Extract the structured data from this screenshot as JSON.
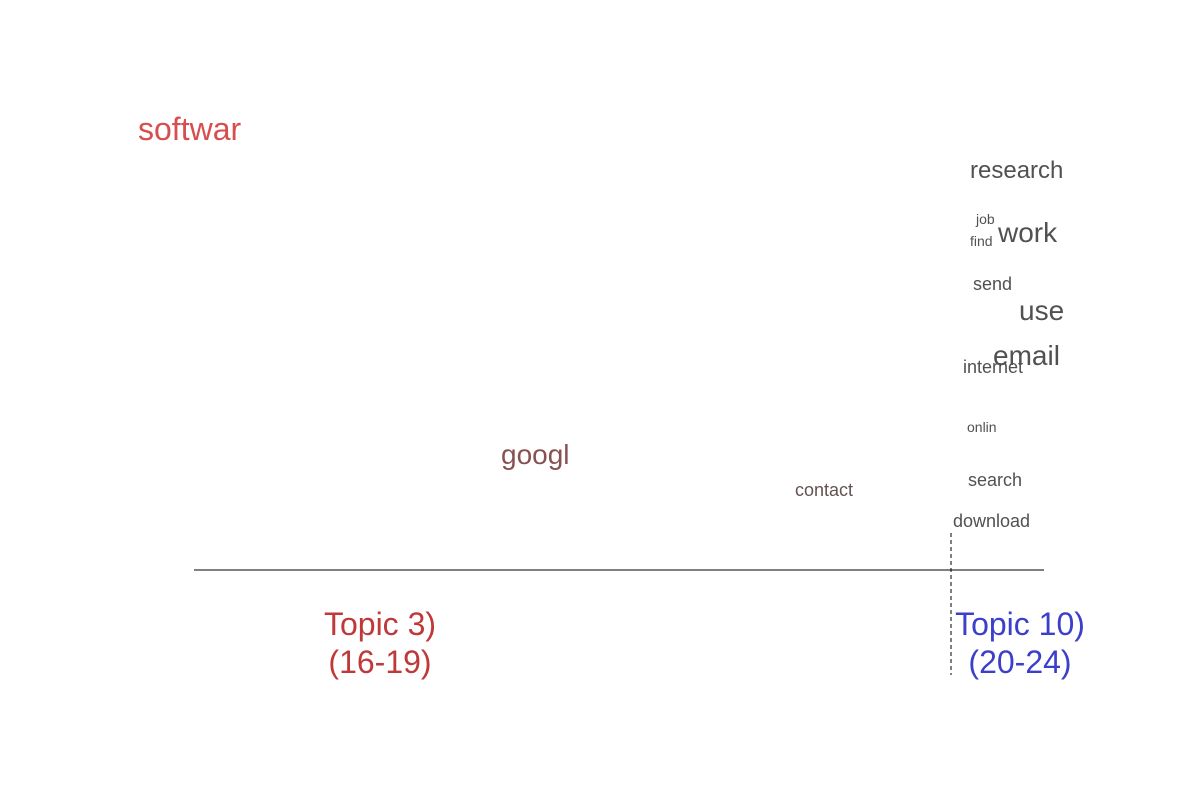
{
  "chart_data": {
    "type": "scatter",
    "grid": false,
    "axis": {
      "line_color": "#000000",
      "marker_style": "dashed"
    },
    "topics": [
      {
        "name": "Topic 3)",
        "range": "(16-19)",
        "color": "#c0393a"
      },
      {
        "name": "Topic 10)",
        "range": "(20-24)",
        "color": "#3b3fc9"
      }
    ],
    "words": [
      {
        "text": "softwar",
        "topic_mix": 0.0,
        "size": 5
      },
      {
        "text": "googl",
        "topic_mix": 0.45,
        "size": 4
      },
      {
        "text": "contact",
        "topic_mix": 0.79,
        "size": 2
      },
      {
        "text": "research",
        "topic_mix": 1.0,
        "size": 3
      },
      {
        "text": "job",
        "topic_mix": 1.0,
        "size": 1
      },
      {
        "text": "work",
        "topic_mix": 1.0,
        "size": 4
      },
      {
        "text": "find",
        "topic_mix": 1.0,
        "size": 1
      },
      {
        "text": "send",
        "topic_mix": 1.0,
        "size": 2
      },
      {
        "text": "use",
        "topic_mix": 1.0,
        "size": 4
      },
      {
        "text": "email",
        "topic_mix": 1.0,
        "size": 4
      },
      {
        "text": "internet",
        "topic_mix": 1.0,
        "size": 2
      },
      {
        "text": "onlin",
        "topic_mix": 1.0,
        "size": 1
      },
      {
        "text": "search",
        "topic_mix": 1.0,
        "size": 2
      },
      {
        "text": "download",
        "topic_mix": 1.0,
        "size": 2
      }
    ]
  }
}
